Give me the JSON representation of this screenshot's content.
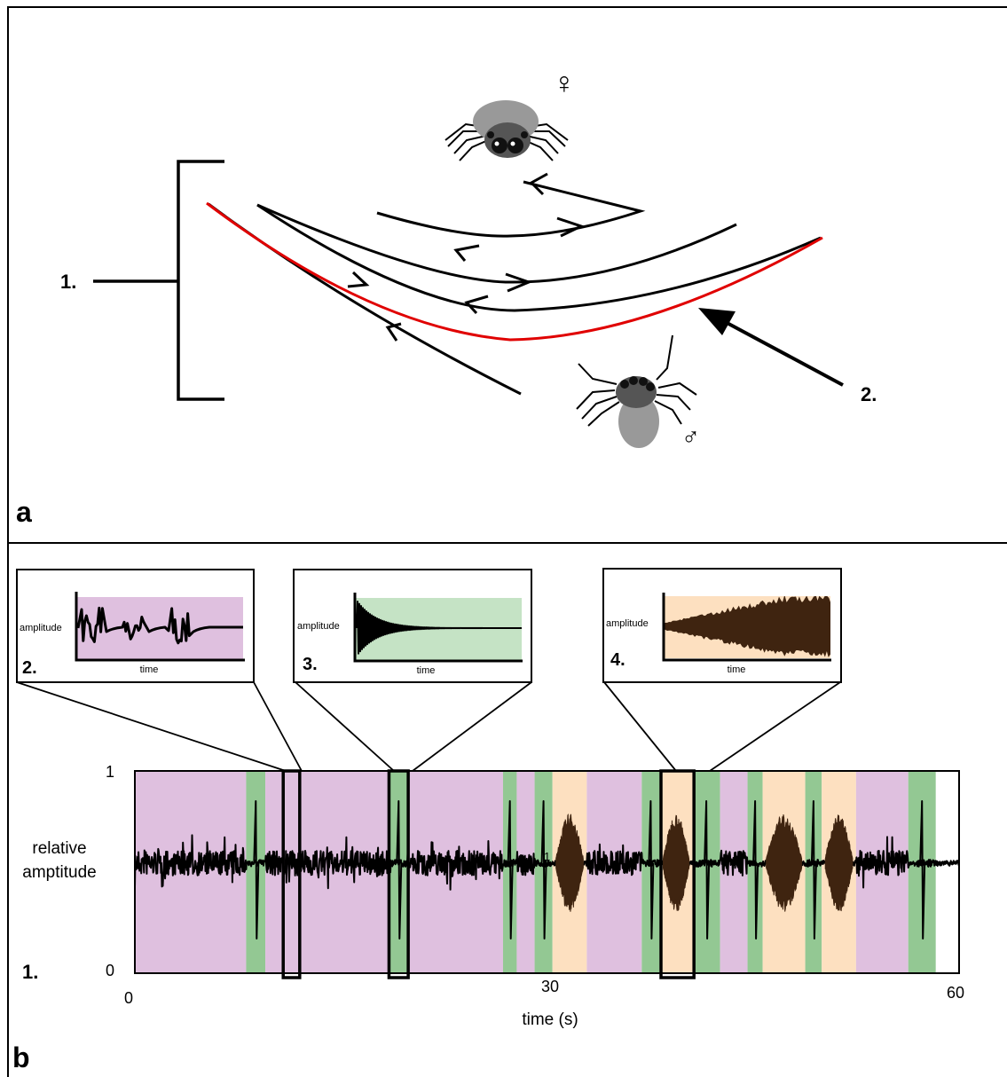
{
  "panel_a": {
    "letter": "a",
    "label_1": "1.",
    "label_2": "2.",
    "female_symbol": "♀",
    "male_symbol": "♂",
    "female_icon": "spider-female-icon",
    "male_icon": "spider-male-icon"
  },
  "panel_b": {
    "letter": "b",
    "inset_2": {
      "label": "2.",
      "ylabel": "amplitude",
      "xlabel": "time",
      "bg_color": "#dfc0df"
    },
    "inset_3": {
      "label": "3.",
      "ylabel": "amplitude",
      "xlabel": "time",
      "bg_color": "#c5e3c5"
    },
    "inset_4": {
      "label": "4.",
      "ylabel": "amplitude",
      "xlabel": "time",
      "bg_color": "#fde0c0"
    },
    "main_label": "1.",
    "stray_tick": "1",
    "colors": {
      "purple": "#dfc0df",
      "green": "#93c893",
      "orange": "#fde0c0",
      "signal": "#000000",
      "signal_brown": "#3f2410"
    }
  },
  "chart_data": {
    "type": "area",
    "xlabel": "time (s)",
    "ylabel_lines": [
      "relative",
      "amptitude"
    ],
    "xlim": [
      0,
      60
    ],
    "ylim": [
      0,
      1
    ],
    "x_ticks": [
      0,
      30,
      60
    ],
    "y_ticks": [
      0,
      1
    ],
    "segments": [
      {
        "start": 0,
        "end": 8.1,
        "type": "purple"
      },
      {
        "start": 8.1,
        "end": 9.5,
        "type": "green"
      },
      {
        "start": 9.5,
        "end": 18.6,
        "type": "purple"
      },
      {
        "start": 18.6,
        "end": 19.8,
        "type": "green"
      },
      {
        "start": 19.8,
        "end": 26.8,
        "type": "purple"
      },
      {
        "start": 26.8,
        "end": 27.8,
        "type": "green"
      },
      {
        "start": 27.8,
        "end": 29.1,
        "type": "purple"
      },
      {
        "start": 29.1,
        "end": 30.4,
        "type": "green"
      },
      {
        "start": 30.4,
        "end": 32.9,
        "type": "orange"
      },
      {
        "start": 32.9,
        "end": 36.9,
        "type": "purple"
      },
      {
        "start": 36.9,
        "end": 38.2,
        "type": "green"
      },
      {
        "start": 38.2,
        "end": 40.6,
        "type": "orange"
      },
      {
        "start": 40.6,
        "end": 42.6,
        "type": "green"
      },
      {
        "start": 42.6,
        "end": 44.6,
        "type": "purple"
      },
      {
        "start": 44.6,
        "end": 45.7,
        "type": "green"
      },
      {
        "start": 45.7,
        "end": 48.8,
        "type": "orange"
      },
      {
        "start": 48.8,
        "end": 50.0,
        "type": "green"
      },
      {
        "start": 50.0,
        "end": 52.5,
        "type": "orange"
      },
      {
        "start": 52.5,
        "end": 56.3,
        "type": "purple"
      },
      {
        "start": 56.3,
        "end": 58.3,
        "type": "green"
      }
    ],
    "zoom_boxes": [
      {
        "start": 10.8,
        "end": 12.0,
        "inset": "2."
      },
      {
        "start": 18.5,
        "end": 19.9,
        "inset": "3."
      },
      {
        "start": 38.3,
        "end": 40.7,
        "inset": "4."
      }
    ]
  }
}
